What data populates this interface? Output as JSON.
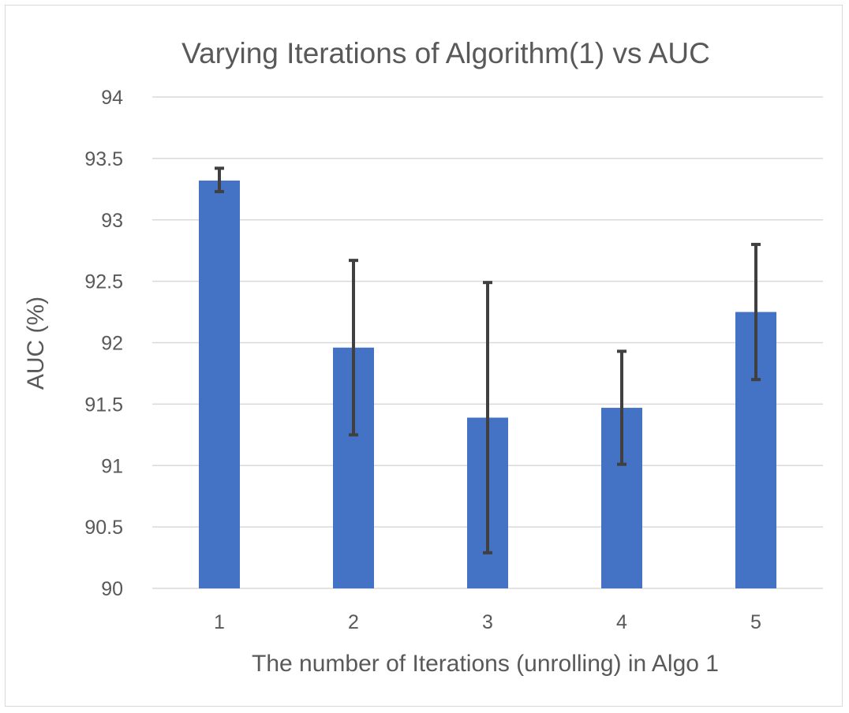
{
  "chart_data": {
    "type": "bar",
    "title": "Varying Iterations of Algorithm(1) vs AUC",
    "xlabel": "The number of Iterations (unrolling) in Algo 1",
    "ylabel": "AUC (%)",
    "categories": [
      "1",
      "2",
      "3",
      "4",
      "5"
    ],
    "values": [
      93.32,
      91.96,
      91.39,
      91.47,
      92.25
    ],
    "error_low": [
      93.23,
      91.25,
      90.29,
      91.01,
      91.7
    ],
    "error_high": [
      93.42,
      92.67,
      92.49,
      91.93,
      92.8
    ],
    "ylim": [
      90,
      94
    ],
    "yticks": [
      "90",
      "90.5",
      "91",
      "91.5",
      "92",
      "92.5",
      "93",
      "93.5",
      "94"
    ],
    "grid": true,
    "bar_color": "#4472c4",
    "error_bar_color": "#404040"
  }
}
